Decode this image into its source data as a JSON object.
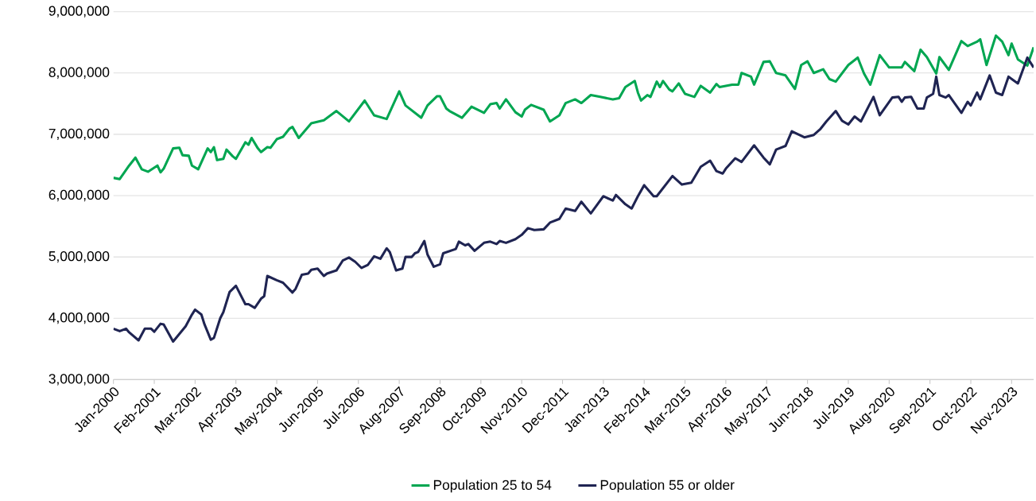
{
  "chart_data": {
    "type": "line",
    "grid": "y",
    "legend": "bottom",
    "xlim": [
      "2000-01",
      "2024-06"
    ],
    "ylim": [
      3000000,
      9000000
    ],
    "xticks": [
      {
        "value": "2000-01",
        "label": "Jan-2000"
      },
      {
        "value": "2001-02",
        "label": "Feb-2001"
      },
      {
        "value": "2002-03",
        "label": "Mar-2002"
      },
      {
        "value": "2003-04",
        "label": "Apr-2003"
      },
      {
        "value": "2004-05",
        "label": "May-2004"
      },
      {
        "value": "2005-06",
        "label": "Jun-2005"
      },
      {
        "value": "2006-07",
        "label": "Jul-2006"
      },
      {
        "value": "2007-08",
        "label": "Aug-2007"
      },
      {
        "value": "2008-09",
        "label": "Sep-2008"
      },
      {
        "value": "2009-10",
        "label": "Oct-2009"
      },
      {
        "value": "2010-11",
        "label": "Nov-2010"
      },
      {
        "value": "2011-12",
        "label": "Dec-2011"
      },
      {
        "value": "2013-01",
        "label": "Jan-2013"
      },
      {
        "value": "2014-02",
        "label": "Feb-2014"
      },
      {
        "value": "2015-03",
        "label": "Mar-2015"
      },
      {
        "value": "2016-04",
        "label": "Apr-2016"
      },
      {
        "value": "2017-05",
        "label": "May-2017"
      },
      {
        "value": "2018-06",
        "label": "Jun-2018"
      },
      {
        "value": "2019-07",
        "label": "Jul-2019"
      },
      {
        "value": "2020-08",
        "label": "Aug-2020"
      },
      {
        "value": "2021-09",
        "label": "Sep-2021"
      },
      {
        "value": "2022-10",
        "label": "Oct-2022"
      },
      {
        "value": "2023-11",
        "label": "Nov-2023"
      }
    ],
    "yticks": [
      {
        "value": 3000000,
        "label": "3,000,000"
      },
      {
        "value": 4000000,
        "label": "4,000,000"
      },
      {
        "value": 5000000,
        "label": "5,000,000"
      },
      {
        "value": 6000000,
        "label": "6,000,000"
      },
      {
        "value": 7000000,
        "label": "7,000,000"
      },
      {
        "value": 8000000,
        "label": "8,000,000"
      },
      {
        "value": 9000000,
        "label": "9,000,000"
      }
    ],
    "series": [
      {
        "name": "Population 25 to 54",
        "color": "#00a651",
        "x": [
          "2000-01",
          "2000-03",
          "2000-06",
          "2000-08",
          "2000-10",
          "2000-12",
          "2001-03",
          "2001-04",
          "2001-05",
          "2001-08",
          "2001-10",
          "2001-11",
          "2002-01",
          "2002-02",
          "2002-04",
          "2002-07",
          "2002-08",
          "2002-09",
          "2002-10",
          "2002-12",
          "2003-01",
          "2003-03",
          "2003-04",
          "2003-07",
          "2003-08",
          "2003-09",
          "2003-11",
          "2003-12",
          "2004-02",
          "2004-03",
          "2004-05",
          "2004-07",
          "2004-09",
          "2004-10",
          "2004-12",
          "2005-04",
          "2005-08",
          "2005-12",
          "2006-04",
          "2006-09",
          "2006-12",
          "2007-04",
          "2007-08",
          "2007-10",
          "2008-03",
          "2008-05",
          "2008-08",
          "2008-09",
          "2008-11",
          "2008-12",
          "2009-04",
          "2009-07",
          "2009-11",
          "2010-01",
          "2010-03",
          "2010-04",
          "2010-06",
          "2010-09",
          "2010-11",
          "2010-12",
          "2011-02",
          "2011-06",
          "2011-08",
          "2011-11",
          "2012-01",
          "2012-04",
          "2012-06",
          "2012-09",
          "2012-12",
          "2013-04",
          "2013-06",
          "2013-08",
          "2013-11",
          "2013-12",
          "2014-01",
          "2014-03",
          "2014-04",
          "2014-06",
          "2014-07",
          "2014-08",
          "2014-10",
          "2014-11",
          "2015-01",
          "2015-03",
          "2015-06",
          "2015-08",
          "2015-11",
          "2016-01",
          "2016-02",
          "2016-06",
          "2016-08",
          "2016-09",
          "2016-12",
          "2017-01",
          "2017-04",
          "2017-06",
          "2017-08",
          "2017-11",
          "2018-02",
          "2018-04",
          "2018-06",
          "2018-08",
          "2018-11",
          "2019-01",
          "2019-03",
          "2019-07",
          "2019-10",
          "2019-12",
          "2020-02",
          "2020-05",
          "2020-08",
          "2020-12",
          "2021-01",
          "2021-04",
          "2021-06",
          "2021-08",
          "2021-11",
          "2021-12",
          "2022-03",
          "2022-07",
          "2022-09",
          "2022-12",
          "2023-01",
          "2023-03",
          "2023-06",
          "2023-08",
          "2023-10",
          "2023-11",
          "2024-01",
          "2024-04",
          "2024-06"
        ],
        "values": [
          6290000,
          6270000,
          6490000,
          6620000,
          6430000,
          6390000,
          6490000,
          6380000,
          6440000,
          6770000,
          6780000,
          6660000,
          6650000,
          6490000,
          6430000,
          6770000,
          6710000,
          6790000,
          6580000,
          6600000,
          6750000,
          6640000,
          6600000,
          6870000,
          6830000,
          6940000,
          6770000,
          6710000,
          6790000,
          6780000,
          6920000,
          6960000,
          7090000,
          7120000,
          6940000,
          7180000,
          7230000,
          7380000,
          7210000,
          7550000,
          7310000,
          7250000,
          7700000,
          7470000,
          7270000,
          7470000,
          7620000,
          7620000,
          7420000,
          7380000,
          7270000,
          7450000,
          7350000,
          7490000,
          7510000,
          7420000,
          7570000,
          7360000,
          7290000,
          7400000,
          7480000,
          7400000,
          7210000,
          7310000,
          7510000,
          7570000,
          7510000,
          7640000,
          7610000,
          7570000,
          7590000,
          7770000,
          7870000,
          7680000,
          7550000,
          7640000,
          7610000,
          7860000,
          7770000,
          7870000,
          7730000,
          7700000,
          7830000,
          7660000,
          7610000,
          7790000,
          7680000,
          7820000,
          7770000,
          7810000,
          7810000,
          8000000,
          7940000,
          7810000,
          8180000,
          8190000,
          8000000,
          7960000,
          7740000,
          8130000,
          8190000,
          8000000,
          8060000,
          7900000,
          7860000,
          8130000,
          8250000,
          7990000,
          7810000,
          8290000,
          8090000,
          8090000,
          8180000,
          8030000,
          8380000,
          8260000,
          7990000,
          8260000,
          8050000,
          8520000,
          8440000,
          8510000,
          8550000,
          8130000,
          8610000,
          8510000,
          8290000,
          8480000,
          8220000,
          8120000,
          8420000
        ]
      },
      {
        "name": "Population 55 or older",
        "color": "#1f2452",
        "x": [
          "2000-01",
          "2000-03",
          "2000-05",
          "2000-06",
          "2000-09",
          "2000-11",
          "2001-01",
          "2001-02",
          "2001-04",
          "2001-05",
          "2001-08",
          "2001-12",
          "2002-02",
          "2002-03",
          "2002-05",
          "2002-06",
          "2002-08",
          "2002-09",
          "2002-11",
          "2002-12",
          "2003-02",
          "2003-04",
          "2003-07",
          "2003-08",
          "2003-10",
          "2003-12",
          "2004-01",
          "2004-02",
          "2004-05",
          "2004-07",
          "2004-10",
          "2004-11",
          "2005-01",
          "2005-03",
          "2005-04",
          "2005-06",
          "2005-08",
          "2005-09",
          "2005-12",
          "2006-02",
          "2006-04",
          "2006-06",
          "2006-08",
          "2006-10",
          "2006-12",
          "2007-02",
          "2007-04",
          "2007-05",
          "2007-07",
          "2007-09",
          "2007-10",
          "2007-12",
          "2008-01",
          "2008-02",
          "2008-04",
          "2008-05",
          "2008-07",
          "2008-09",
          "2008-10",
          "2009-02",
          "2009-03",
          "2009-05",
          "2009-06",
          "2009-08",
          "2009-11",
          "2010-01",
          "2010-03",
          "2010-04",
          "2010-06",
          "2010-09",
          "2010-11",
          "2011-01",
          "2011-03",
          "2011-06",
          "2011-08",
          "2011-11",
          "2012-01",
          "2012-04",
          "2012-06",
          "2012-09",
          "2013-01",
          "2013-04",
          "2013-05",
          "2013-08",
          "2013-10",
          "2013-12",
          "2014-02",
          "2014-05",
          "2014-06",
          "2014-11",
          "2015-02",
          "2015-05",
          "2015-08",
          "2015-11",
          "2016-01",
          "2016-03",
          "2016-04",
          "2016-07",
          "2016-09",
          "2017-01",
          "2017-04",
          "2017-06",
          "2017-08",
          "2017-11",
          "2018-01",
          "2018-05",
          "2018-08",
          "2018-10",
          "2018-12",
          "2019-03",
          "2019-05",
          "2019-07",
          "2019-09",
          "2019-11",
          "2020-03",
          "2020-05",
          "2020-09",
          "2020-11",
          "2020-12",
          "2021-01",
          "2021-03",
          "2021-05",
          "2021-07",
          "2021-08",
          "2021-10",
          "2021-11",
          "2021-12",
          "2022-02",
          "2022-03",
          "2022-07",
          "2022-09",
          "2022-10",
          "2022-12",
          "2023-01",
          "2023-04",
          "2023-06",
          "2023-08",
          "2023-10",
          "2024-01",
          "2024-04",
          "2024-06"
        ],
        "values": [
          3830000,
          3790000,
          3830000,
          3770000,
          3640000,
          3830000,
          3830000,
          3780000,
          3910000,
          3900000,
          3620000,
          3870000,
          4060000,
          4140000,
          4060000,
          3900000,
          3650000,
          3680000,
          4000000,
          4100000,
          4430000,
          4530000,
          4230000,
          4230000,
          4170000,
          4320000,
          4360000,
          4690000,
          4620000,
          4580000,
          4420000,
          4480000,
          4710000,
          4730000,
          4790000,
          4810000,
          4690000,
          4730000,
          4780000,
          4940000,
          4990000,
          4920000,
          4820000,
          4870000,
          5010000,
          4970000,
          5140000,
          5080000,
          4780000,
          4810000,
          5000000,
          5000000,
          5060000,
          5080000,
          5260000,
          5040000,
          4840000,
          4880000,
          5060000,
          5130000,
          5250000,
          5190000,
          5210000,
          5100000,
          5230000,
          5250000,
          5210000,
          5260000,
          5230000,
          5290000,
          5360000,
          5470000,
          5440000,
          5450000,
          5560000,
          5620000,
          5790000,
          5750000,
          5900000,
          5710000,
          5990000,
          5920000,
          6010000,
          5860000,
          5790000,
          5990000,
          6170000,
          5990000,
          5990000,
          6320000,
          6180000,
          6210000,
          6470000,
          6570000,
          6400000,
          6360000,
          6440000,
          6610000,
          6550000,
          6820000,
          6620000,
          6510000,
          6750000,
          6810000,
          7050000,
          6950000,
          6990000,
          7080000,
          7210000,
          7380000,
          7220000,
          7160000,
          7290000,
          7210000,
          7610000,
          7310000,
          7600000,
          7610000,
          7530000,
          7600000,
          7610000,
          7420000,
          7420000,
          7600000,
          7660000,
          7940000,
          7640000,
          7600000,
          7640000,
          7350000,
          7530000,
          7470000,
          7680000,
          7570000,
          7960000,
          7680000,
          7640000,
          7940000,
          7830000,
          8250000,
          8090000
        ]
      }
    ]
  }
}
